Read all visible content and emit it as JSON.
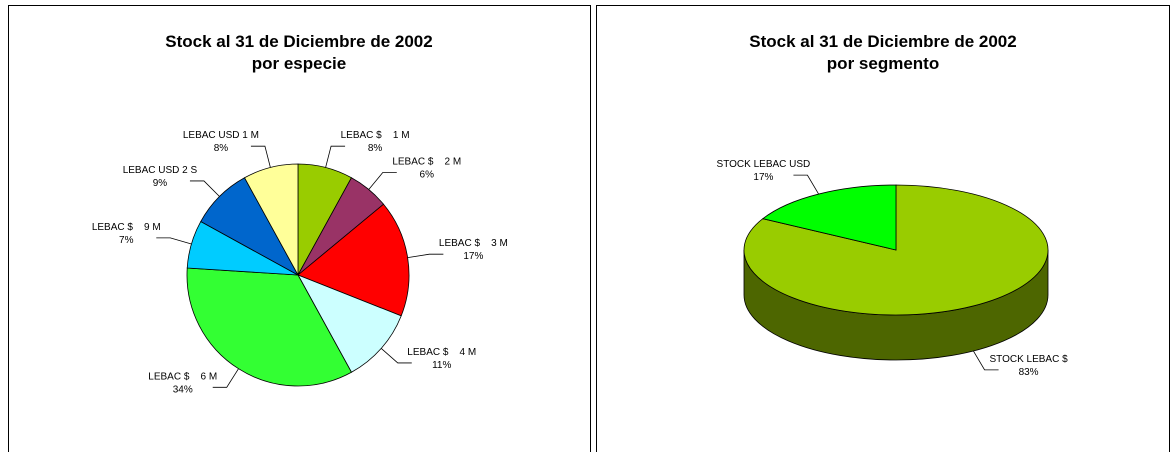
{
  "chart_data": [
    {
      "type": "pie",
      "title": "Stock al 31 de Diciembre de 2002",
      "subtitle": "por especie",
      "categories": [
        "LEBAC $    1 M",
        "LEBAC $    2 M",
        "LEBAC $    3 M",
        "LEBAC $    4 M",
        "LEBAC $    6 M",
        "LEBAC $    9 M",
        "LEBAC USD 2 S",
        "LEBAC USD 1 M"
      ],
      "values": [
        8,
        6,
        17,
        11,
        34,
        7,
        9,
        8
      ],
      "value_labels": [
        "8%",
        "6%",
        "17%",
        "11%",
        "34%",
        "7%",
        "9%",
        "8%"
      ],
      "colors": [
        "#99cc00",
        "#993366",
        "#ff0000",
        "#ccffff",
        "#33ff33",
        "#00ccff",
        "#0066cc",
        "#ffff99"
      ],
      "three_d": false
    },
    {
      "type": "pie",
      "title": "Stock al 31 de Diciembre de 2002",
      "subtitle": "por segmento",
      "categories": [
        "STOCK LEBAC $",
        "STOCK LEBAC USD"
      ],
      "values": [
        83,
        17
      ],
      "value_labels": [
        "83%",
        "17%"
      ],
      "colors": [
        "#99cc00",
        "#00ff00"
      ],
      "three_d": true
    }
  ]
}
